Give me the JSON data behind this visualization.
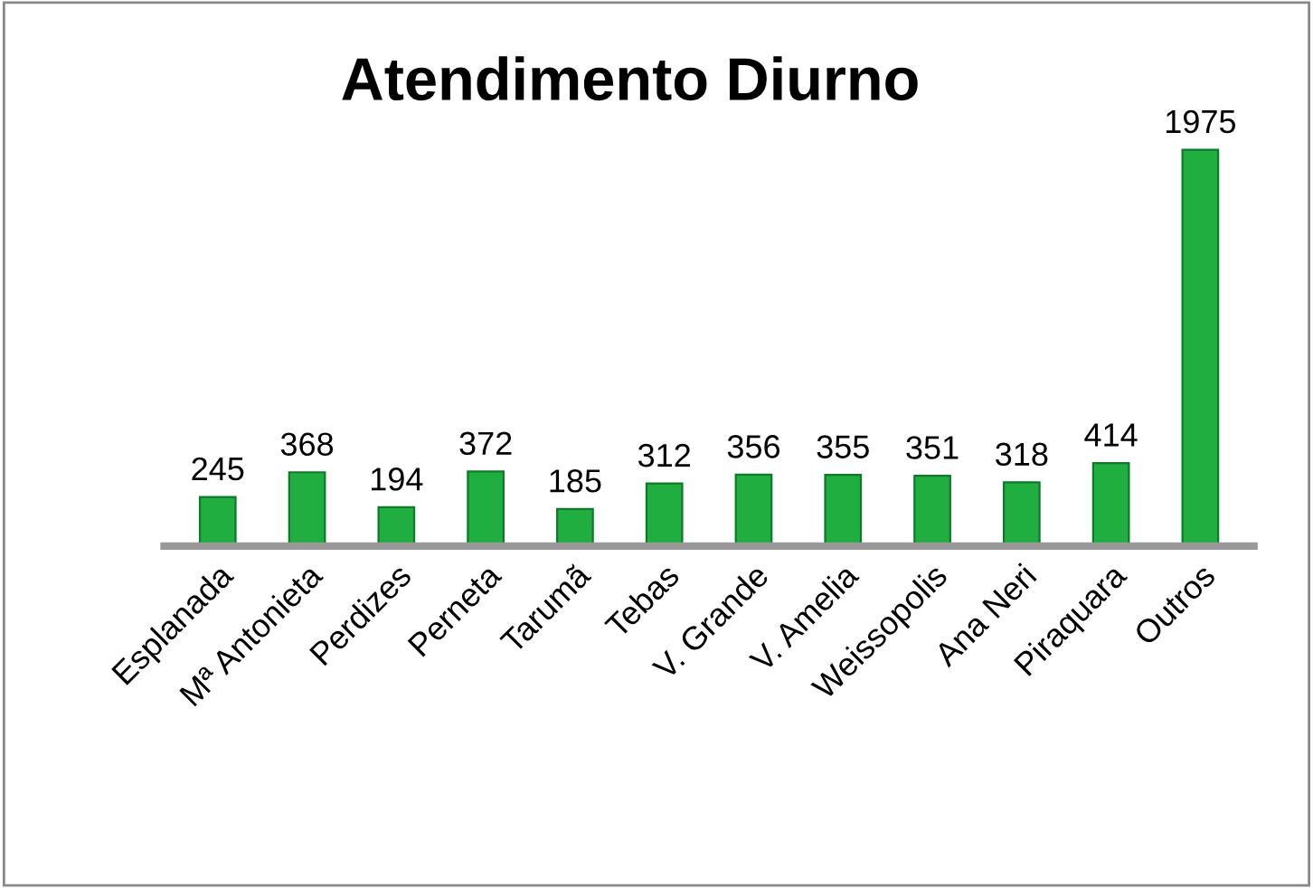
{
  "chart_data": {
    "type": "bar",
    "title": "Atendimento Diurno",
    "categories": [
      "Esplanada",
      "Mª Antonieta",
      "Perdizes",
      "Perneta",
      "Tarumã",
      "Tebas",
      "V. Grande",
      "V. Amelia",
      "Weissopolis",
      "Ana Neri",
      "Piraquara",
      "Outros"
    ],
    "values": [
      245,
      368,
      194,
      372,
      185,
      312,
      356,
      355,
      351,
      318,
      414,
      1975
    ],
    "color": "#1fae3f",
    "data_labels": true,
    "grid": false,
    "legend": false
  }
}
